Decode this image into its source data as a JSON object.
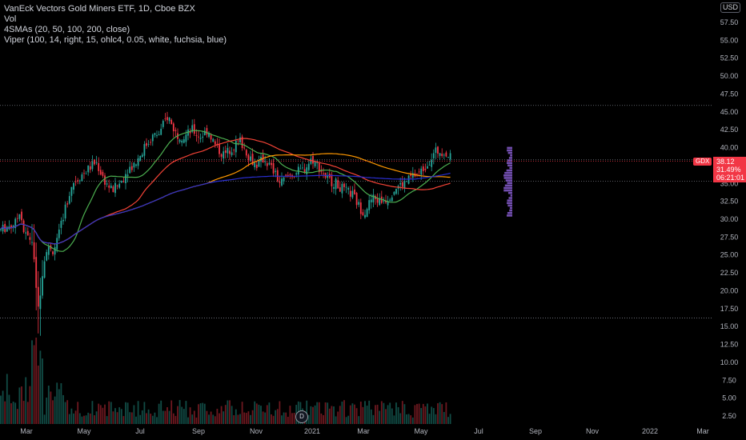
{
  "legend": {
    "title": "VanEck Vectors Gold Miners ETF, 1D, Cboe BZX",
    "vol": "Vol",
    "sma": "4SMAs (20, 50, 100, 200, close)",
    "viper": "Viper (100, 14, right, 15, ohlc4, 0.05, white, fuchsia, blue)"
  },
  "currency": "USD",
  "price_badge": {
    "ticker": "GDX",
    "last": "38.12",
    "change": "31.49%",
    "countdown": "06:21:01"
  },
  "dividend_marker": "D",
  "colors": {
    "up": "#26a69a",
    "down": "#f23645",
    "sma20": "#4caf50",
    "sma50": "#f44336",
    "sma100": "#ff9800",
    "sma200": "#2a2ed0",
    "profile": "#7e57c2",
    "grid_dotted": "#787b86"
  },
  "chart_data": {
    "type": "candlestick",
    "ylim": [
      0,
      60
    ],
    "y_ticks": [
      "57.50",
      "55.00",
      "52.50",
      "50.00",
      "47.50",
      "45.00",
      "42.50",
      "40.00",
      "37.50",
      "35.00",
      "32.50",
      "30.00",
      "27.50",
      "25.00",
      "22.50",
      "20.00",
      "17.50",
      "15.00",
      "12.50",
      "10.00",
      "7.50",
      "5.00",
      "2.50"
    ],
    "y_ticks_values": [
      57.5,
      55,
      52.5,
      50,
      47.5,
      45,
      42.5,
      40,
      37.5,
      35,
      32.5,
      30,
      27.5,
      25,
      22.5,
      20,
      17.5,
      15,
      12.5,
      10,
      7.5,
      5,
      2.5
    ],
    "x_ticks": [
      "Mar",
      "May",
      "Jul",
      "Sep",
      "Nov",
      "2021",
      "Mar",
      "May",
      "Jul",
      "Sep",
      "Nov",
      "2022",
      "Mar"
    ],
    "last_price": 38.12,
    "reference_levels": [
      45.9,
      38.3,
      35.3,
      16.2
    ],
    "series": [
      {
        "name": "SMA 20"
      },
      {
        "name": "SMA 50"
      },
      {
        "name": "SMA 100"
      },
      {
        "name": "SMA 200"
      }
    ]
  }
}
